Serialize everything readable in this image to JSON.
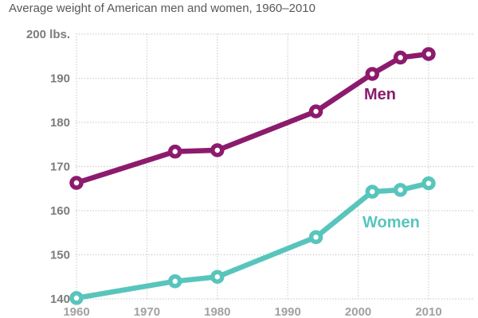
{
  "chart_data": {
    "type": "line",
    "title": "Average weight of American men and women, 1960–2010",
    "x": [
      1960,
      1974,
      1980,
      1994,
      2002,
      2006,
      2010
    ],
    "series": [
      {
        "name": "Men",
        "color": "#8c1b6e",
        "values": [
          166.3,
          173.4,
          173.7,
          182.5,
          191.0,
          194.7,
          195.5
        ],
        "label_pos": {
          "x": 457,
          "y": 125
        }
      },
      {
        "name": "Women",
        "color": "#58c5bd",
        "values": [
          140.2,
          144.0,
          145.0,
          154.0,
          164.3,
          164.7,
          166.2
        ],
        "label_pos": {
          "x": 455,
          "y": 286
        }
      }
    ],
    "xlabel": "",
    "ylabel": "lbs.",
    "xlim": [
      1960,
      2010
    ],
    "ylim": [
      140,
      200
    ],
    "xticks": [
      {
        "value": 1960,
        "label": "1960"
      },
      {
        "value": 1970,
        "label": "1970"
      },
      {
        "value": 1980,
        "label": "1980"
      },
      {
        "value": 1990,
        "label": "1990"
      },
      {
        "value": 2000,
        "label": "2000"
      },
      {
        "value": 2010,
        "label": "2010"
      }
    ],
    "yticks": [
      {
        "value": 200,
        "label": "200 lbs."
      },
      {
        "value": 190,
        "label": "190"
      },
      {
        "value": 180,
        "label": "180"
      },
      {
        "value": 170,
        "label": "170"
      },
      {
        "value": 160,
        "label": "160"
      },
      {
        "value": 150,
        "label": "150"
      },
      {
        "value": 140,
        "label": "140"
      }
    ],
    "grid": "dotted",
    "legend": "inline-series-labels",
    "colors": {
      "grid": "#cccccc",
      "ytick_text": "#7c7c7c",
      "xtick_text": "#a1a1a1",
      "title_text": "#58585a",
      "marker_hole": "#ffffff"
    },
    "layout": {
      "plot_left": 96,
      "plot_top": 43,
      "plot_bottom": 376,
      "grid_right": 595,
      "x_axis_right": 538,
      "ytick_label_right": 88,
      "xtick_label_baseline": 397
    }
  }
}
